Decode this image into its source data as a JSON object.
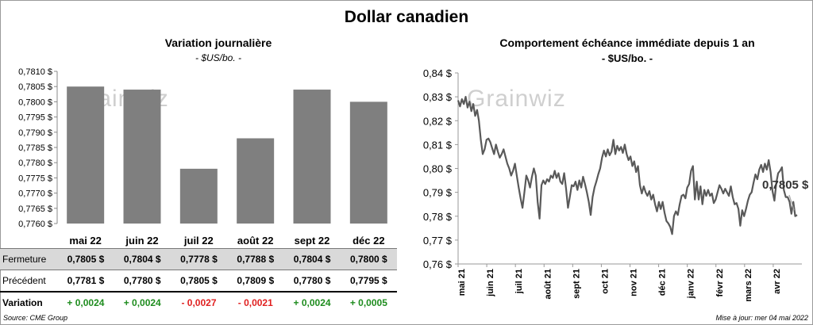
{
  "title": "Dollar canadien",
  "left": {
    "title": "Variation  journalière",
    "unit": "- $US/bo. -",
    "watermark": "Grainwiz"
  },
  "right": {
    "title": "Comportement échéance immédiate depuis 1 an",
    "unit": "- $US/bo. -",
    "watermark": "Grainwiz",
    "last_label": "0,7805 $"
  },
  "table": {
    "rows": [
      {
        "label": "Fermeture",
        "values": [
          "0,7805  $",
          "0,7804  $",
          "0,7778  $",
          "0,7788  $",
          "0,7804  $",
          "0,7800  $"
        ]
      },
      {
        "label": "Précédent",
        "values": [
          "0,7781  $",
          "0,7780  $",
          "0,7805  $",
          "0,7809  $",
          "0,7780  $",
          "0,7795  $"
        ]
      },
      {
        "label": "Variation",
        "values": [
          "+ 0,0024",
          "+ 0,0024",
          "- 0,0027",
          "- 0,0021",
          "+ 0,0024",
          "+ 0,0005"
        ]
      }
    ]
  },
  "colors": {
    "bar": "#7f7f7f",
    "line": "#595959",
    "up": "#1e8c1e",
    "down": "#e02020",
    "tableband": "#d9d9d9"
  },
  "footer": {
    "source": "Source: CME Group",
    "updated": "Mise à jour: mer 04 mai 2022"
  },
  "chart_data": [
    {
      "type": "bar",
      "categories": [
        "mai 22",
        "juin 22",
        "juil 22",
        "août 22",
        "sept 22",
        "déc 22"
      ],
      "values": [
        0.7805,
        0.7804,
        0.7778,
        0.7788,
        0.7804,
        0.78
      ],
      "ylim": [
        0.776,
        0.781
      ],
      "yticks": [
        "0,7760 $",
        "0,7765 $",
        "0,7770 $",
        "0,7775 $",
        "0,7780 $",
        "0,7785 $",
        "0,7790 $",
        "0,7795 $",
        "0,7800 $",
        "0,7805 $",
        "0,7810 $"
      ],
      "grid": false
    },
    {
      "type": "line",
      "ylim": [
        0.76,
        0.84
      ],
      "yticks": [
        "0,76 $",
        "0,77 $",
        "0,78 $",
        "0,79 $",
        "0,80 $",
        "0,81 $",
        "0,82 $",
        "0,83 $",
        "0,84 $"
      ],
      "xticks": [
        "mai 21",
        "juin 21",
        "juil 21",
        "août 21",
        "sept 21",
        "oct 21",
        "nov 21",
        "déc 21",
        "janv 22",
        "févr 22",
        "mars 22",
        "avr 22"
      ],
      "x_range": [
        "mai 21",
        "mai 22"
      ],
      "values": [
        0.8285,
        0.826,
        0.829,
        0.827,
        0.83,
        0.8255,
        0.828,
        0.824,
        0.827,
        0.822,
        0.8245,
        0.82,
        0.812,
        0.806,
        0.808,
        0.812,
        0.8125,
        0.811,
        0.8085,
        0.806,
        0.81,
        0.807,
        0.8045,
        0.806,
        0.808,
        0.805,
        0.802,
        0.8,
        0.797,
        0.799,
        0.802,
        0.797,
        0.792,
        0.7875,
        0.7835,
        0.79,
        0.797,
        0.795,
        0.792,
        0.7965,
        0.8,
        0.797,
        0.786,
        0.779,
        0.793,
        0.795,
        0.7935,
        0.7955,
        0.7945,
        0.797,
        0.796,
        0.799,
        0.796,
        0.798,
        0.7945,
        0.7935,
        0.798,
        0.7915,
        0.7835,
        0.788,
        0.793,
        0.7925,
        0.7945,
        0.791,
        0.795,
        0.792,
        0.7965,
        0.7935,
        0.79,
        0.786,
        0.7805,
        0.788,
        0.792,
        0.7945,
        0.7975,
        0.8,
        0.8045,
        0.8075,
        0.805,
        0.808,
        0.8055,
        0.807,
        0.812,
        0.806,
        0.8095,
        0.8075,
        0.809,
        0.8065,
        0.81,
        0.806,
        0.8035,
        0.805,
        0.801,
        0.803,
        0.7985,
        0.801,
        0.793,
        0.7895,
        0.7925,
        0.79,
        0.7885,
        0.7905,
        0.787,
        0.789,
        0.785,
        0.782,
        0.786,
        0.783,
        0.786,
        0.7815,
        0.778,
        0.777,
        0.7755,
        0.7725,
        0.78,
        0.782,
        0.7805,
        0.785,
        0.7885,
        0.789,
        0.7875,
        0.792,
        0.7935,
        0.799,
        0.801,
        0.787,
        0.7945,
        0.787,
        0.7925,
        0.785,
        0.791,
        0.7885,
        0.791,
        0.7885,
        0.7895,
        0.7855,
        0.787,
        0.79,
        0.793,
        0.7915,
        0.7895,
        0.7915,
        0.79,
        0.7885,
        0.7925,
        0.788,
        0.785,
        0.7855,
        0.783,
        0.776,
        0.7825,
        0.78,
        0.783,
        0.7865,
        0.789,
        0.79,
        0.794,
        0.7975,
        0.7955,
        0.7995,
        0.8015,
        0.7985,
        0.802,
        0.7995,
        0.8035,
        0.7985,
        0.7905,
        0.7865,
        0.794,
        0.798,
        0.799,
        0.8005,
        0.791,
        0.788,
        0.788,
        0.786,
        0.781,
        0.786,
        0.78,
        0.7805
      ]
    }
  ]
}
